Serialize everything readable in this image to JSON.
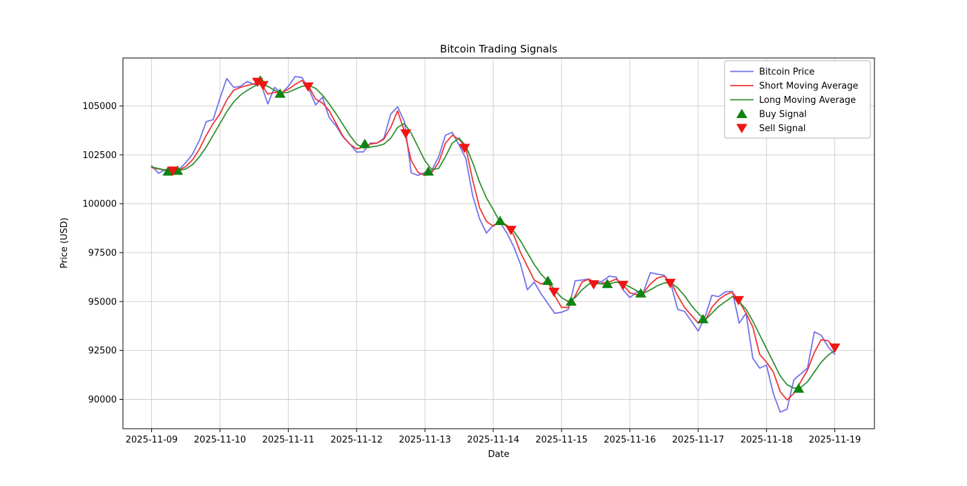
{
  "chart_data": {
    "type": "line",
    "title": "Bitcoin Trading Signals",
    "xlabel": "Date",
    "ylabel": "Price (USD)",
    "grid": true,
    "legend_position": "upper right",
    "x_unit": "day of November 2025",
    "xlim": [
      8.58,
      19.58
    ],
    "ylim": [
      88500,
      107450
    ],
    "x_ticks": [
      {
        "v": 9,
        "label": "2025-11-09"
      },
      {
        "v": 10,
        "label": "2025-11-10"
      },
      {
        "v": 11,
        "label": "2025-11-11"
      },
      {
        "v": 12,
        "label": "2025-11-12"
      },
      {
        "v": 13,
        "label": "2025-11-13"
      },
      {
        "v": 14,
        "label": "2025-11-14"
      },
      {
        "v": 15,
        "label": "2025-11-15"
      },
      {
        "v": 16,
        "label": "2025-11-16"
      },
      {
        "v": 17,
        "label": "2025-11-17"
      },
      {
        "v": 18,
        "label": "2025-11-18"
      },
      {
        "v": 19,
        "label": "2025-11-19"
      }
    ],
    "y_ticks": [
      {
        "v": 90000,
        "label": "90000"
      },
      {
        "v": 92500,
        "label": "92500"
      },
      {
        "v": 95000,
        "label": "95000"
      },
      {
        "v": 97500,
        "label": "97500"
      },
      {
        "v": 100000,
        "label": "100000"
      },
      {
        "v": 102500,
        "label": "102500"
      },
      {
        "v": 105000,
        "label": "105000"
      }
    ],
    "x": [
      9.0,
      9.1,
      9.2,
      9.3,
      9.4,
      9.5,
      9.6,
      9.7,
      9.8,
      9.9,
      10.0,
      10.1,
      10.2,
      10.3,
      10.4,
      10.5,
      10.6,
      10.7,
      10.8,
      10.9,
      11.0,
      11.1,
      11.2,
      11.3,
      11.4,
      11.5,
      11.6,
      11.7,
      11.8,
      11.9,
      12.0,
      12.1,
      12.2,
      12.3,
      12.4,
      12.5,
      12.6,
      12.7,
      12.8,
      12.9,
      13.0,
      13.1,
      13.2,
      13.3,
      13.4,
      13.5,
      13.6,
      13.7,
      13.8,
      13.9,
      14.0,
      14.1,
      14.2,
      14.3,
      14.4,
      14.5,
      14.6,
      14.7,
      14.8,
      14.9,
      15.0,
      15.1,
      15.2,
      15.3,
      15.4,
      15.5,
      15.6,
      15.7,
      15.8,
      15.9,
      16.0,
      16.1,
      16.2,
      16.3,
      16.4,
      16.5,
      16.6,
      16.7,
      16.8,
      16.9,
      17.0,
      17.1,
      17.2,
      17.3,
      17.4,
      17.5,
      17.6,
      17.7,
      17.8,
      17.9,
      18.0,
      18.1,
      18.2,
      18.3,
      18.4,
      18.5,
      18.6,
      18.7,
      18.8,
      18.9,
      19.0
    ],
    "series": [
      {
        "name": "Bitcoin Price",
        "color": "#7070ec",
        "width": 1.8,
        "values": [
          101940,
          101560,
          101740,
          101640,
          101750,
          102100,
          102550,
          103250,
          104200,
          104300,
          105400,
          106400,
          105950,
          106000,
          106250,
          106100,
          106150,
          105100,
          105950,
          105650,
          106000,
          106500,
          106450,
          105880,
          105050,
          105450,
          104400,
          103980,
          103420,
          103060,
          102640,
          102650,
          103100,
          103100,
          103350,
          104580,
          104950,
          104200,
          101580,
          101450,
          101600,
          101700,
          102400,
          103500,
          103650,
          103000,
          102300,
          100400,
          99230,
          98500,
          98900,
          99050,
          98500,
          97800,
          96900,
          95600,
          96000,
          95400,
          94900,
          94400,
          94450,
          94600,
          96060,
          96100,
          96150,
          95950,
          96050,
          96300,
          96250,
          95600,
          95200,
          95480,
          95500,
          96480,
          96400,
          96350,
          95900,
          94600,
          94500,
          94000,
          93490,
          94200,
          95320,
          95250,
          95500,
          95520,
          93900,
          94400,
          92100,
          91600,
          91750,
          90300,
          89350,
          89500,
          91000,
          91300,
          91600,
          93450,
          93280,
          92700,
          92300
        ]
      },
      {
        "name": "Short Moving Average",
        "color": "#ee3333",
        "width": 1.8,
        "values": [
          101850,
          101780,
          101700,
          101700,
          101730,
          101900,
          102250,
          102800,
          103500,
          104100,
          104600,
          105300,
          105800,
          105950,
          106050,
          106130,
          106150,
          105600,
          105700,
          105680,
          105850,
          106100,
          106300,
          106000,
          105350,
          105150,
          104750,
          104100,
          103450,
          103050,
          102800,
          102900,
          103050,
          103100,
          103300,
          103900,
          104750,
          103700,
          102200,
          101600,
          101450,
          101600,
          102100,
          103100,
          103500,
          103300,
          102850,
          101200,
          99800,
          99100,
          98850,
          99100,
          98900,
          98400,
          97500,
          96800,
          96100,
          95900,
          96000,
          95300,
          94700,
          94700,
          95300,
          96000,
          96150,
          95900,
          95950,
          96000,
          96150,
          95850,
          95450,
          95350,
          95450,
          95900,
          96200,
          96300,
          96000,
          95300,
          94700,
          94300,
          93900,
          94000,
          94700,
          95100,
          95350,
          95480,
          95000,
          94400,
          93700,
          92300,
          91900,
          91400,
          90400,
          89970,
          90300,
          90900,
          91500,
          92400,
          93050,
          93000,
          92650
        ]
      },
      {
        "name": "Long Moving Average",
        "color": "#2f8f2f",
        "width": 1.8,
        "values": [
          101880,
          101800,
          101720,
          101690,
          101700,
          101780,
          102000,
          102400,
          102900,
          103500,
          104100,
          104700,
          105200,
          105550,
          105800,
          106000,
          106150,
          106000,
          105800,
          105650,
          105700,
          105850,
          106000,
          106050,
          105900,
          105550,
          105100,
          104600,
          104050,
          103500,
          103050,
          102850,
          102900,
          102950,
          103050,
          103350,
          103900,
          104100,
          103600,
          102900,
          102200,
          101750,
          101800,
          102400,
          103100,
          103350,
          102950,
          102100,
          101100,
          100300,
          99700,
          99050,
          98850,
          98600,
          98100,
          97500,
          96900,
          96400,
          96050,
          95600,
          95200,
          95000,
          95200,
          95600,
          95900,
          95950,
          95900,
          95900,
          96000,
          95900,
          95750,
          95550,
          95420,
          95600,
          95800,
          95950,
          95950,
          95700,
          95300,
          94800,
          94400,
          94050,
          94400,
          94750,
          95000,
          95250,
          95000,
          94600,
          94000,
          93300,
          92600,
          91900,
          91200,
          90750,
          90570,
          90600,
          90900,
          91400,
          91900,
          92250,
          92500
        ]
      }
    ],
    "signals": {
      "buy": {
        "name": "Buy Signal",
        "color": "#0f830f",
        "marker": "triangle-up",
        "points": [
          {
            "x": 9.24,
            "y": 101650
          },
          {
            "x": 9.38,
            "y": 101690
          },
          {
            "x": 10.59,
            "y": 106300
          },
          {
            "x": 10.88,
            "y": 105630
          },
          {
            "x": 12.12,
            "y": 103060
          },
          {
            "x": 13.05,
            "y": 101650
          },
          {
            "x": 14.1,
            "y": 99120
          },
          {
            "x": 14.8,
            "y": 96060
          },
          {
            "x": 15.14,
            "y": 95000
          },
          {
            "x": 15.67,
            "y": 95900
          },
          {
            "x": 16.16,
            "y": 95420
          },
          {
            "x": 17.07,
            "y": 94100
          },
          {
            "x": 18.47,
            "y": 90550
          }
        ]
      },
      "sell": {
        "name": "Sell Signal",
        "color": "#f01515",
        "marker": "triangle-down",
        "points": [
          {
            "x": 9.31,
            "y": 101690
          },
          {
            "x": 10.55,
            "y": 106230
          },
          {
            "x": 10.63,
            "y": 106060
          },
          {
            "x": 11.29,
            "y": 105990
          },
          {
            "x": 12.72,
            "y": 103590
          },
          {
            "x": 13.58,
            "y": 102850
          },
          {
            "x": 14.26,
            "y": 98660
          },
          {
            "x": 14.89,
            "y": 95490
          },
          {
            "x": 15.47,
            "y": 95880
          },
          {
            "x": 15.9,
            "y": 95850
          },
          {
            "x": 16.59,
            "y": 95950
          },
          {
            "x": 17.59,
            "y": 95070
          },
          {
            "x": 19.0,
            "y": 92640
          }
        ]
      }
    },
    "colors": {
      "grid": "#cccccc",
      "spine": "#000000",
      "legend_border": "#b3b3b3"
    }
  }
}
